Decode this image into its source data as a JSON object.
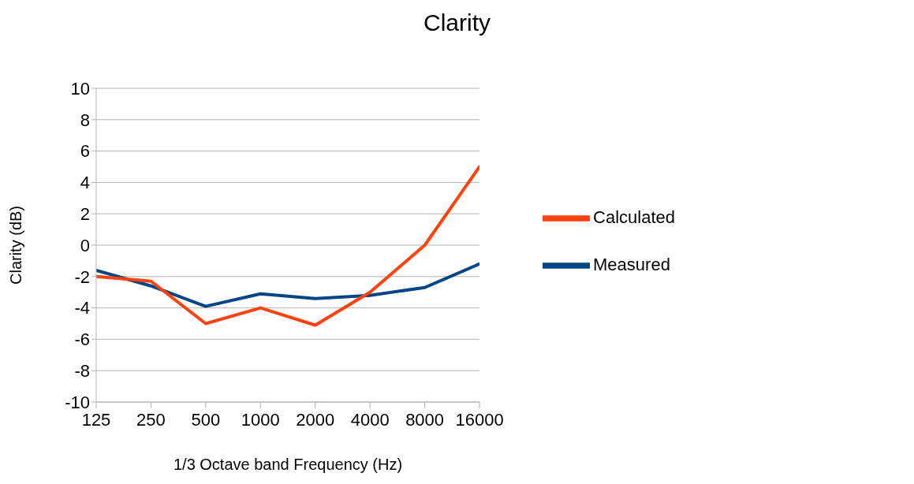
{
  "chart_data": {
    "type": "line",
    "title": "Clarity",
    "xlabel": "1/3 Octave band Frequency (Hz)",
    "ylabel": "Clarity (dB)",
    "categories": [
      "125",
      "250",
      "500",
      "1000",
      "2000",
      "4000",
      "8000",
      "16000"
    ],
    "series": [
      {
        "name": "Measured",
        "color": "#004586",
        "values": [
          -1.6,
          -2.6,
          -3.9,
          -3.1,
          -3.4,
          -3.2,
          -2.7,
          -1.2
        ]
      },
      {
        "name": "Calculated",
        "color": "#ff420e",
        "values": [
          -2.0,
          -2.3,
          -5.0,
          -4.0,
          -5.1,
          -3.0,
          0,
          5.0
        ]
      }
    ],
    "ylim": [
      -10,
      10
    ],
    "yticks": [
      -10,
      -8,
      -6,
      -4,
      -2,
      0,
      2,
      4,
      6,
      8,
      10
    ],
    "grid": "y",
    "legend": "right",
    "marker": "none",
    "line_style": "solid"
  }
}
